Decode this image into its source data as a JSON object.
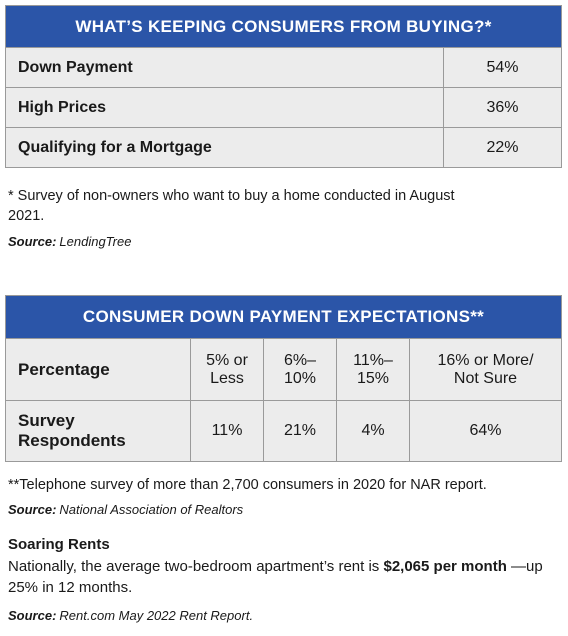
{
  "table1": {
    "title": "WHAT’S KEEPING CONSUMERS FROM BUYING?*",
    "rows": [
      [
        "Down Payment",
        "54%"
      ],
      [
        "High Prices",
        "36%"
      ],
      [
        "Qualifying for a Mortgage",
        "22%"
      ]
    ],
    "footnote": "* Survey of non-owners who want to buy a home conducted in August 2021.",
    "source_label": "Source:",
    "source": "LendingTree"
  },
  "table2": {
    "title": "CONSUMER DOWN PAYMENT EXPECTATIONS**",
    "header": [
      "Percentage",
      "5% or Less",
      "6%–10%",
      "11%–15%",
      "16% or More/ Not Sure"
    ],
    "row": [
      "Survey Respondents",
      "11%",
      "21%",
      "4%",
      "64%"
    ],
    "footnote": "**Telephone survey of more than 2,700 consumers in 2020 for NAR report.",
    "source_label": "Source:",
    "source": "National Association of Realtors"
  },
  "rents": {
    "heading": "Soaring Rents",
    "text_before": "Nationally, the average two-bedroom apartment’s rent is",
    "text_bold": "$2,065 per month",
    "text_after": "—up 25% in 12 months.",
    "source_label": "Source:",
    "source": "Rent.com May 2022 Rent Report."
  }
}
